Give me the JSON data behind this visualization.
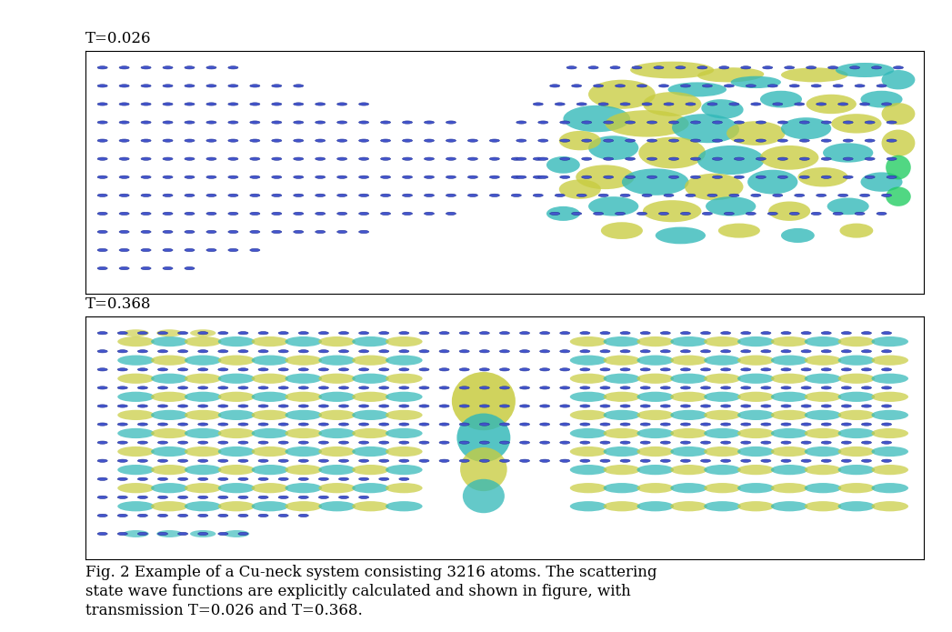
{
  "title_top": "T=0.026",
  "title_bottom": "T=0.368",
  "caption_line1": "Fig. 2 Example of a Cu-neck system consisting 3216 atoms. The scattering",
  "caption_line2": "state wave functions are explicitly calculated and shown in figure, with",
  "caption_line3": "transmission T=0.026 and T=0.368.",
  "bg_color": "#ffffff",
  "fig_width": 10.47,
  "fig_height": 6.95,
  "label_fontsize": 12,
  "caption_fontsize": 12
}
